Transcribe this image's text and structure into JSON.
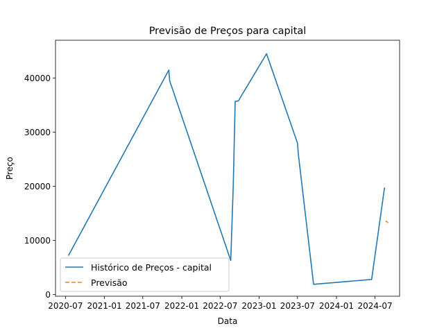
{
  "chart_data": {
    "type": "line",
    "title": "Previsão de Preços para capital",
    "xlabel": "Data",
    "ylabel": "Preço",
    "x_type": "date",
    "xlim": [
      "2020-05-15",
      "2024-10-25"
    ],
    "ylim": [
      -300,
      47000
    ],
    "x_ticks": [
      {
        "date": "2020-07-01",
        "label": "2020-07"
      },
      {
        "date": "2021-01-01",
        "label": "2021-01"
      },
      {
        "date": "2021-07-01",
        "label": "2021-07"
      },
      {
        "date": "2022-01-01",
        "label": "2022-01"
      },
      {
        "date": "2022-07-01",
        "label": "2022-07"
      },
      {
        "date": "2023-01-01",
        "label": "2023-01"
      },
      {
        "date": "2023-07-01",
        "label": "2023-07"
      },
      {
        "date": "2024-01-01",
        "label": "2024-01"
      },
      {
        "date": "2024-07-01",
        "label": "2024-07"
      }
    ],
    "y_ticks": [
      0,
      10000,
      20000,
      30000,
      40000
    ],
    "grid": false,
    "legend_position": "lower-left",
    "series": [
      {
        "name": "Histórico de Preços - capital",
        "color": "#1f77b4",
        "style": "solid",
        "points": [
          {
            "x": "2020-07-15",
            "y": 7200
          },
          {
            "x": "2021-11-01",
            "y": 41500
          },
          {
            "x": "2021-11-05",
            "y": 39500
          },
          {
            "x": "2022-08-20",
            "y": 6300
          },
          {
            "x": "2022-09-01",
            "y": 20000
          },
          {
            "x": "2022-09-10",
            "y": 35700
          },
          {
            "x": "2022-09-25",
            "y": 35800
          },
          {
            "x": "2023-02-05",
            "y": 44500
          },
          {
            "x": "2023-07-01",
            "y": 28000
          },
          {
            "x": "2023-07-05",
            "y": 26000
          },
          {
            "x": "2023-09-15",
            "y": 1900
          },
          {
            "x": "2024-06-15",
            "y": 2800
          },
          {
            "x": "2024-08-15",
            "y": 19800
          }
        ]
      },
      {
        "name": "Previsão",
        "color": "#ff7f0e",
        "style": "dashed",
        "points": [
          {
            "x": "2024-08-20",
            "y": 13600
          },
          {
            "x": "2024-09-01",
            "y": 13300
          }
        ]
      }
    ]
  }
}
